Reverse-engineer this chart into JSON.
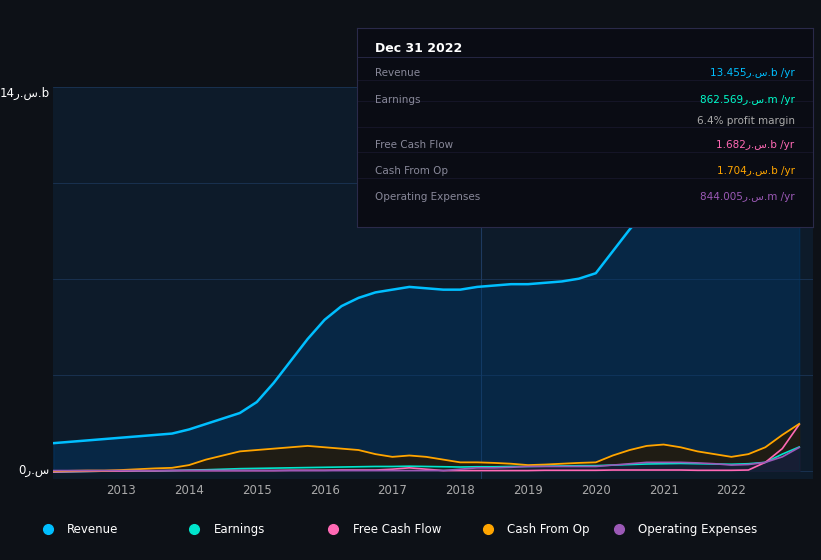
{
  "background_color": "#0d1117",
  "chart_bg_color": "#0d1b2a",
  "y_label_top": "14ر.س.b",
  "y_label_bottom": "0ر.س",
  "y_max": 14,
  "info_box": {
    "date": "Dec 31 2022",
    "rows": [
      {
        "label": "Revenue",
        "value": "13.455ر.س.b /yr",
        "value_color": "#00bfff"
      },
      {
        "label": "Earnings",
        "value": "862.569ر.س.m /yr",
        "value_color": "#00ffcc"
      },
      {
        "label": "",
        "value": "6.4% profit margin",
        "value_color": "#aaaaaa"
      },
      {
        "label": "Free Cash Flow",
        "value": "1.682ر.س.b /yr",
        "value_color": "#ff69b4"
      },
      {
        "label": "Cash From Op",
        "value": "1.704ر.س.b /yr",
        "value_color": "#ffa500"
      },
      {
        "label": "Operating Expenses",
        "value": "844.005ر.س.m /yr",
        "value_color": "#9b59b6"
      }
    ]
  },
  "legend": [
    {
      "label": "Revenue",
      "color": "#00bfff"
    },
    {
      "label": "Earnings",
      "color": "#00e5cc"
    },
    {
      "label": "Free Cash Flow",
      "color": "#ff69b4"
    },
    {
      "label": "Cash From Op",
      "color": "#ffa500"
    },
    {
      "label": "Operating Expenses",
      "color": "#9b59b6"
    }
  ],
  "years": [
    2012.0,
    2012.25,
    2012.5,
    2012.75,
    2013.0,
    2013.25,
    2013.5,
    2013.75,
    2014.0,
    2014.25,
    2014.5,
    2014.75,
    2015.0,
    2015.25,
    2015.5,
    2015.75,
    2016.0,
    2016.25,
    2016.5,
    2016.75,
    2017.0,
    2017.25,
    2017.5,
    2017.75,
    2018.0,
    2018.25,
    2018.5,
    2018.75,
    2019.0,
    2019.25,
    2019.5,
    2019.75,
    2020.0,
    2020.25,
    2020.5,
    2020.75,
    2021.0,
    2021.25,
    2021.5,
    2021.75,
    2022.0,
    2022.25,
    2022.5,
    2022.75,
    2023.0
  ],
  "revenue": [
    1.0,
    1.05,
    1.1,
    1.15,
    1.2,
    1.25,
    1.3,
    1.35,
    1.5,
    1.7,
    1.9,
    2.1,
    2.5,
    3.2,
    4.0,
    4.8,
    5.5,
    6.0,
    6.3,
    6.5,
    6.6,
    6.7,
    6.65,
    6.6,
    6.6,
    6.7,
    6.75,
    6.8,
    6.8,
    6.85,
    6.9,
    7.0,
    7.2,
    8.0,
    8.8,
    9.5,
    10.0,
    10.2,
    10.0,
    9.8,
    9.5,
    9.8,
    10.5,
    12.0,
    13.455
  ],
  "earnings": [
    -0.05,
    -0.04,
    -0.03,
    -0.02,
    -0.02,
    -0.01,
    -0.01,
    0.0,
    0.02,
    0.03,
    0.05,
    0.07,
    0.08,
    0.09,
    0.1,
    0.11,
    0.12,
    0.13,
    0.14,
    0.15,
    0.15,
    0.16,
    0.15,
    0.14,
    0.13,
    0.14,
    0.14,
    0.15,
    0.15,
    0.16,
    0.17,
    0.18,
    0.18,
    0.2,
    0.22,
    0.24,
    0.25,
    0.26,
    0.25,
    0.24,
    0.23,
    0.25,
    0.3,
    0.6,
    0.862
  ],
  "free_cash_flow": [
    -0.05,
    -0.04,
    -0.03,
    -0.02,
    -0.02,
    -0.01,
    -0.01,
    0.0,
    0.0,
    0.0,
    0.0,
    0.0,
    0.0,
    0.0,
    0.01,
    0.01,
    0.01,
    0.02,
    0.02,
    0.02,
    0.05,
    0.1,
    0.05,
    0.0,
    0.0,
    0.0,
    0.0,
    0.0,
    0.0,
    0.01,
    0.01,
    0.01,
    0.01,
    0.02,
    0.02,
    0.02,
    0.02,
    0.02,
    0.01,
    0.01,
    0.01,
    0.02,
    0.3,
    0.8,
    1.682
  ],
  "cash_from_op": [
    -0.02,
    -0.01,
    0.0,
    0.0,
    0.02,
    0.05,
    0.08,
    0.1,
    0.2,
    0.4,
    0.55,
    0.7,
    0.75,
    0.8,
    0.85,
    0.9,
    0.85,
    0.8,
    0.75,
    0.6,
    0.5,
    0.55,
    0.5,
    0.4,
    0.3,
    0.3,
    0.28,
    0.25,
    0.2,
    0.22,
    0.25,
    0.28,
    0.3,
    0.55,
    0.75,
    0.9,
    0.95,
    0.85,
    0.7,
    0.6,
    0.5,
    0.6,
    0.85,
    1.3,
    1.704
  ],
  "operating_expenses": [
    0.0,
    0.0,
    0.0,
    0.0,
    0.0,
    0.0,
    0.0,
    0.0,
    0.0,
    0.0,
    0.0,
    0.0,
    0.0,
    0.0,
    0.0,
    0.0,
    0.0,
    0.0,
    0.0,
    0.0,
    0.0,
    0.0,
    0.0,
    0.0,
    0.05,
    0.1,
    0.1,
    0.12,
    0.15,
    0.15,
    0.15,
    0.15,
    0.15,
    0.2,
    0.25,
    0.3,
    0.3,
    0.3,
    0.28,
    0.25,
    0.2,
    0.22,
    0.3,
    0.5,
    0.844
  ],
  "x_ticks": [
    2013,
    2014,
    2015,
    2016,
    2017,
    2018,
    2019,
    2020,
    2021,
    2022
  ],
  "x_min": 2012.0,
  "x_max": 2023.2
}
